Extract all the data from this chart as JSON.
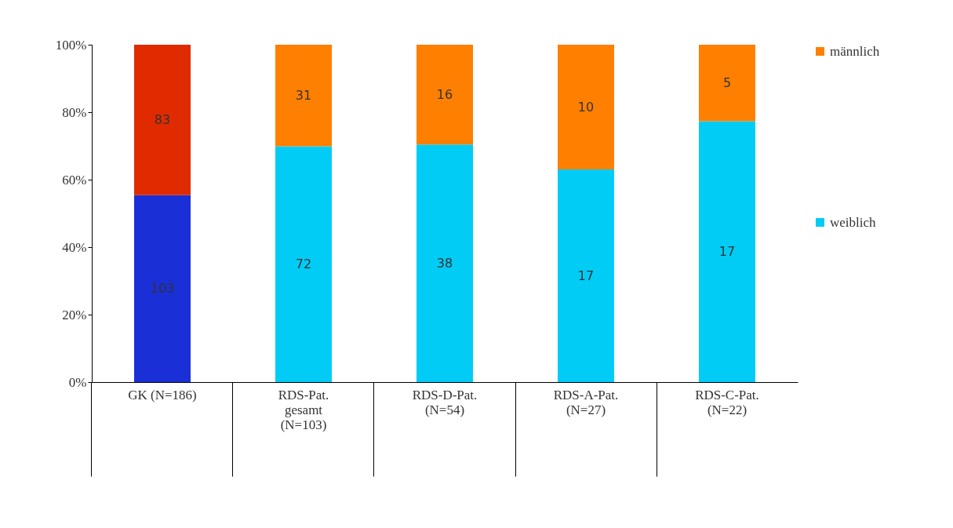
{
  "chart_data": {
    "type": "bar",
    "stacked": true,
    "categories": [
      "GK (N=186)",
      "RDS-Pat.\ngesamt\n(N=103)",
      "RDS-D-Pat.\n(N=54)",
      "RDS-A-Pat.\n(N=27)",
      "RDS-C-Pat.\n(N=22)"
    ],
    "series": [
      {
        "name": "weiblich",
        "color": "#00ccf5",
        "colors": [
          "#1a2fd6",
          "#00ccf5",
          "#00ccf5",
          "#00ccf5",
          "#00ccf5"
        ],
        "values": [
          55.4,
          69.9,
          70.4,
          63.0,
          77.3
        ]
      },
      {
        "name": "männlich",
        "color": "#ff7f00",
        "colors": [
          "#e02a00",
          "#ff7f00",
          "#ff7f00",
          "#ff7f00",
          "#ff7f00"
        ],
        "values": [
          44.6,
          30.1,
          29.6,
          37.0,
          22.7
        ]
      }
    ],
    "annotations": [
      "103",
      "83",
      "72",
      "31",
      "38",
      "16",
      "17",
      "10",
      "17",
      "5"
    ],
    "ylim": [
      0,
      100
    ],
    "yticks": [
      {
        "value": 0,
        "label": "0%"
      },
      {
        "value": 20,
        "label": "20%"
      },
      {
        "value": 40,
        "label": "40%"
      },
      {
        "value": 60,
        "label": "60%"
      },
      {
        "value": 80,
        "label": "80%"
      },
      {
        "value": 100,
        "label": "100%"
      }
    ],
    "legend": "right"
  }
}
